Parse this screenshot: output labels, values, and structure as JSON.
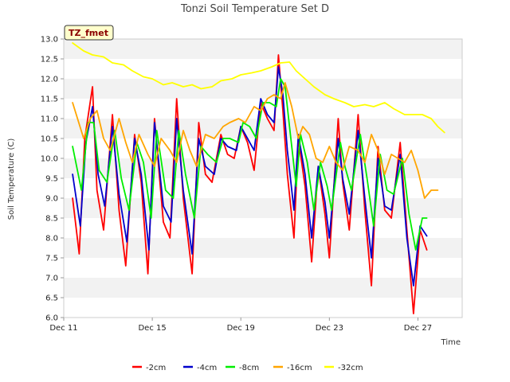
{
  "chart_data": {
    "type": "line",
    "title": "Tonzi Soil Temperature Set D",
    "xlabel": "Time",
    "ylabel": "Soil Temperature (C)",
    "site_label": "TZ_fmet",
    "ylim": [
      6.0,
      13.0
    ],
    "xlim": [
      0,
      18
    ],
    "y_ticks": [
      6.0,
      6.5,
      7.0,
      7.5,
      8.0,
      8.5,
      9.0,
      9.5,
      10.0,
      10.5,
      11.0,
      11.5,
      12.0,
      12.5,
      13.0
    ],
    "y_tick_labels": [
      "6.0",
      "6.5",
      "7.0",
      "7.5",
      "8.0",
      "8.5",
      "9.0",
      "9.5",
      "10.0",
      "10.5",
      "11.0",
      "11.5",
      "12.0",
      "12.5",
      "13.0"
    ],
    "x_ticks": [
      0,
      4,
      8,
      12,
      16
    ],
    "x_tick_labels": [
      "Dec 11",
      "Dec 15",
      "Dec 19",
      "Dec 23",
      "Dec 27"
    ],
    "grid": "horizontal bands",
    "legend_position": "bottom",
    "series": [
      {
        "name": "-2cm",
        "color": "#ff0000",
        "x": [
          0.4,
          0.7,
          0.95,
          1.3,
          1.5,
          1.8,
          2.2,
          2.5,
          2.8,
          3.2,
          3.5,
          3.8,
          4.1,
          4.5,
          4.8,
          5.1,
          5.4,
          5.8,
          6.1,
          6.4,
          6.7,
          7.1,
          7.4,
          7.7,
          8.0,
          8.3,
          8.6,
          8.9,
          9.2,
          9.5,
          9.7,
          9.9,
          10.1,
          10.4,
          10.6,
          10.9,
          11.2,
          11.5,
          11.8,
          12.0,
          12.4,
          12.6,
          12.9,
          13.3,
          13.6,
          13.9,
          14.2,
          14.5,
          14.8,
          15.2,
          15.5,
          15.8,
          16.1,
          16.4,
          16.7,
          17.0,
          17.3
        ],
        "values": [
          9.0,
          7.6,
          10.5,
          11.8,
          9.2,
          8.2,
          11.1,
          8.7,
          7.3,
          10.6,
          9.4,
          7.1,
          11.0,
          8.4,
          8.0,
          11.5,
          9.0,
          7.1,
          10.9,
          9.6,
          9.4,
          10.6,
          10.1,
          10.0,
          10.8,
          10.4,
          9.7,
          11.4,
          11.0,
          10.7,
          12.6,
          11.2,
          9.6,
          8.0,
          10.5,
          9.3,
          7.4,
          9.8,
          8.6,
          7.5,
          11.0,
          9.4,
          8.2,
          11.1,
          8.7,
          6.8,
          10.3,
          8.7,
          8.5,
          10.4,
          8.2,
          6.1,
          8.2,
          7.7,
          null,
          null,
          null
        ]
      },
      {
        "name": "-4cm",
        "color": "#0000cc",
        "x": [
          0.4,
          0.75,
          1.0,
          1.3,
          1.55,
          1.85,
          2.2,
          2.5,
          2.85,
          3.2,
          3.5,
          3.85,
          4.1,
          4.5,
          4.85,
          5.1,
          5.4,
          5.8,
          6.1,
          6.4,
          6.8,
          7.1,
          7.4,
          7.8,
          8.0,
          8.3,
          8.6,
          8.9,
          9.2,
          9.5,
          9.7,
          9.9,
          10.1,
          10.4,
          10.6,
          10.9,
          11.2,
          11.5,
          11.8,
          12.0,
          12.4,
          12.6,
          12.9,
          13.3,
          13.6,
          13.9,
          14.2,
          14.5,
          14.8,
          15.2,
          15.5,
          15.8,
          16.1,
          16.4,
          16.7
        ],
        "values": [
          9.6,
          8.3,
          10.4,
          11.3,
          9.6,
          8.8,
          10.8,
          9.1,
          7.9,
          10.5,
          9.6,
          7.7,
          10.9,
          8.8,
          8.4,
          11.0,
          9.2,
          7.6,
          10.5,
          9.8,
          9.6,
          10.5,
          10.3,
          10.2,
          10.8,
          10.5,
          10.2,
          11.5,
          11.1,
          10.9,
          12.3,
          11.6,
          10.2,
          8.7,
          10.6,
          9.6,
          8.0,
          9.8,
          8.9,
          8.0,
          10.5,
          9.5,
          8.6,
          10.7,
          9.0,
          7.5,
          10.0,
          8.8,
          8.7,
          10.1,
          8.0,
          6.8,
          8.3,
          8.05,
          null
        ]
      },
      {
        "name": "-8cm",
        "color": "#00ee00",
        "x": [
          0.4,
          0.8,
          1.1,
          1.35,
          1.6,
          1.95,
          2.3,
          2.6,
          2.95,
          3.3,
          3.6,
          3.95,
          4.2,
          4.6,
          4.95,
          5.2,
          5.5,
          5.9,
          6.2,
          6.5,
          6.9,
          7.2,
          7.5,
          7.9,
          8.1,
          8.4,
          8.7,
          9.0,
          9.3,
          9.6,
          9.8,
          10.0,
          10.2,
          10.5,
          10.7,
          11.0,
          11.3,
          11.6,
          11.9,
          12.1,
          12.5,
          12.7,
          13.0,
          13.4,
          13.7,
          14.0,
          14.3,
          14.6,
          14.9,
          15.3,
          15.6,
          15.9,
          16.2,
          16.4,
          16.7
        ],
        "values": [
          10.3,
          9.2,
          10.9,
          10.9,
          9.7,
          9.4,
          10.7,
          9.5,
          8.7,
          10.4,
          9.9,
          8.5,
          10.7,
          9.2,
          9.0,
          10.7,
          9.6,
          8.5,
          10.3,
          10.1,
          9.9,
          10.5,
          10.5,
          10.4,
          10.9,
          10.8,
          10.5,
          11.4,
          11.4,
          11.3,
          12.0,
          11.8,
          10.8,
          9.3,
          10.6,
          9.9,
          8.7,
          9.9,
          9.3,
          8.7,
          10.4,
          9.8,
          9.2,
          10.6,
          9.5,
          8.3,
          10.1,
          9.2,
          9.1,
          10.0,
          8.6,
          7.7,
          8.5,
          8.5,
          null
        ]
      },
      {
        "name": "-16cm",
        "color": "#ffa500",
        "x": [
          0.4,
          0.9,
          1.2,
          1.5,
          1.8,
          2.1,
          2.5,
          2.8,
          3.1,
          3.4,
          3.8,
          4.1,
          4.4,
          4.8,
          5.1,
          5.4,
          5.7,
          6.0,
          6.4,
          6.8,
          7.2,
          7.5,
          7.9,
          8.2,
          8.6,
          8.9,
          9.2,
          9.5,
          9.8,
          10.0,
          10.3,
          10.6,
          10.8,
          11.1,
          11.4,
          11.7,
          12.0,
          12.3,
          12.6,
          12.9,
          13.3,
          13.6,
          13.9,
          14.2,
          14.5,
          14.8,
          15.1,
          15.4,
          15.7,
          16.0,
          16.3,
          16.6,
          16.9,
          17.2
        ],
        "values": [
          11.4,
          10.5,
          11.0,
          11.2,
          10.5,
          10.2,
          11.0,
          10.4,
          9.9,
          10.6,
          10.1,
          9.8,
          10.5,
          10.2,
          9.9,
          10.7,
          10.2,
          9.8,
          10.6,
          10.5,
          10.8,
          10.9,
          11.0,
          10.9,
          11.3,
          11.2,
          11.5,
          11.6,
          11.5,
          11.9,
          11.3,
          10.5,
          10.8,
          10.6,
          10.0,
          9.9,
          10.3,
          9.9,
          9.7,
          10.3,
          10.2,
          9.9,
          10.6,
          10.2,
          9.6,
          10.1,
          10.0,
          9.9,
          10.2,
          9.7,
          9.0,
          9.2,
          9.2,
          null
        ]
      },
      {
        "name": "-32cm",
        "color": "#ffff00",
        "x": [
          0.4,
          0.9,
          1.3,
          1.8,
          2.2,
          2.7,
          3.1,
          3.6,
          4.0,
          4.5,
          4.9,
          5.4,
          5.8,
          6.2,
          6.7,
          7.1,
          7.6,
          8.0,
          8.5,
          8.9,
          9.4,
          9.8,
          10.2,
          10.5,
          10.9,
          11.3,
          11.8,
          12.2,
          12.7,
          13.1,
          13.6,
          14.0,
          14.5,
          14.9,
          15.4,
          15.8,
          16.2,
          16.6,
          16.9,
          17.2
        ],
        "values": [
          12.9,
          12.7,
          12.6,
          12.55,
          12.4,
          12.35,
          12.2,
          12.05,
          12.0,
          11.85,
          11.9,
          11.8,
          11.85,
          11.75,
          11.8,
          11.95,
          12.0,
          12.1,
          12.15,
          12.2,
          12.3,
          12.4,
          12.42,
          12.2,
          12.0,
          11.8,
          11.6,
          11.5,
          11.4,
          11.3,
          11.35,
          11.3,
          11.4,
          11.25,
          11.1,
          11.1,
          11.1,
          11.0,
          10.8,
          10.65
        ]
      }
    ]
  }
}
